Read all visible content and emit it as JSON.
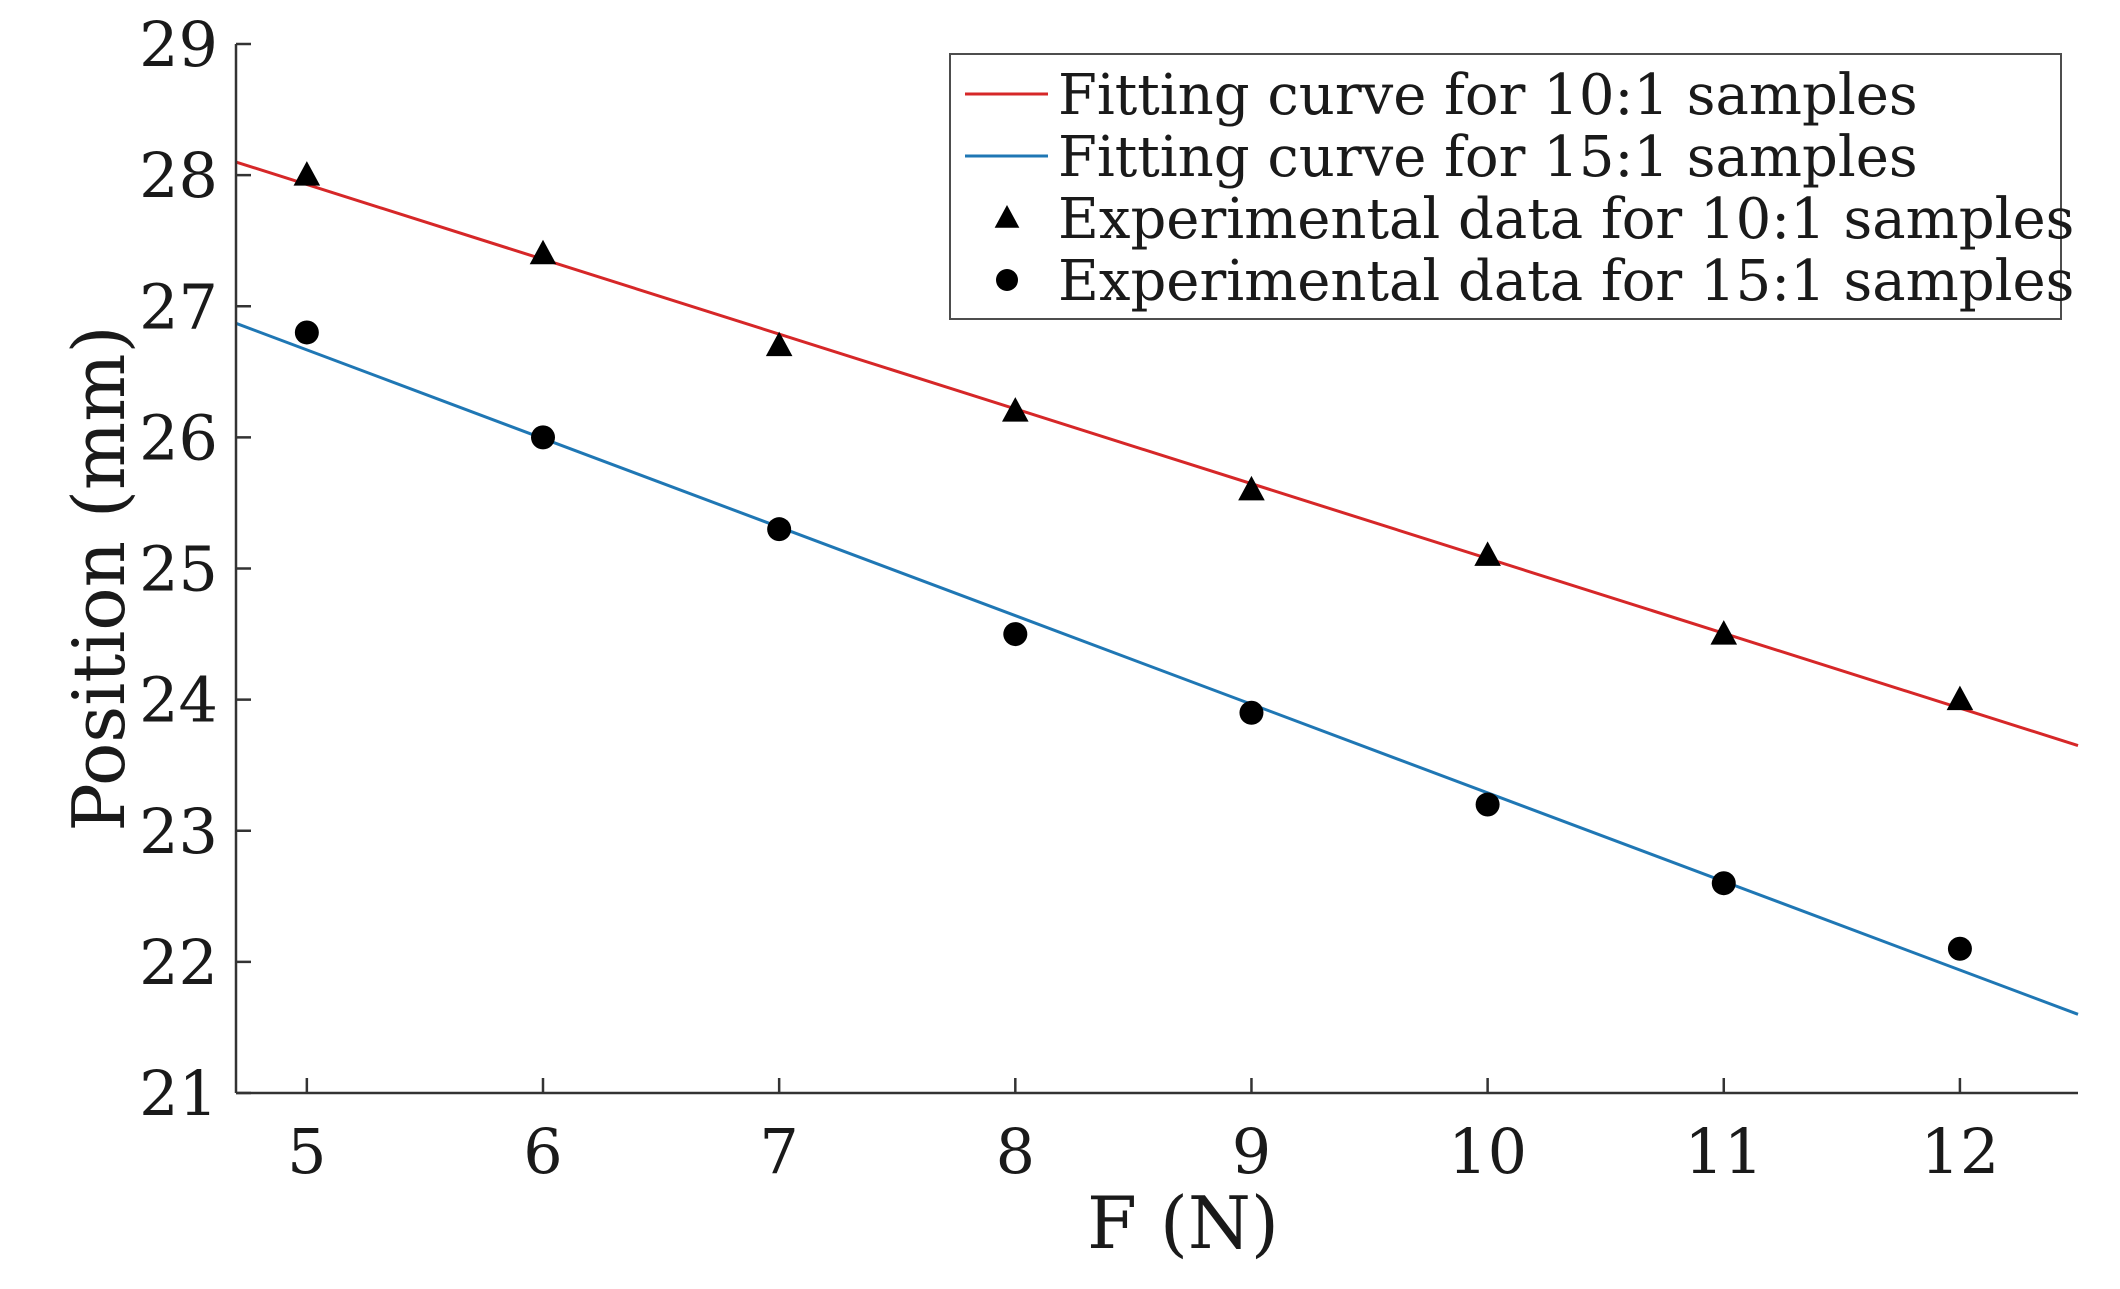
{
  "chart_data": {
    "type": "scatter",
    "title": "",
    "xlabel": "F (N)",
    "ylabel": "Position (mm)",
    "xlim": [
      4.7,
      12.5
    ],
    "ylim": [
      21,
      29
    ],
    "xticks": [
      5,
      6,
      7,
      8,
      9,
      10,
      11,
      12
    ],
    "yticks": [
      21,
      22,
      23,
      24,
      25,
      26,
      27,
      28,
      29
    ],
    "grid": false,
    "legend_position": "top-right",
    "series": [
      {
        "name": "Fitting curve for 10:1 samples",
        "kind": "line",
        "color": "#d62728",
        "x": [
          4.7,
          12.5
        ],
        "y": [
          28.1,
          23.65
        ]
      },
      {
        "name": "Fitting curve for 15:1 samples",
        "kind": "line",
        "color": "#1f77b4",
        "x": [
          4.7,
          12.5
        ],
        "y": [
          26.87,
          21.6
        ]
      },
      {
        "name": "Experimental data for 10:1 samples",
        "kind": "markers",
        "marker": "triangle",
        "color": "#000000",
        "x": [
          5,
          6,
          7,
          8,
          9,
          10,
          11,
          12
        ],
        "y": [
          28.0,
          27.4,
          26.7,
          26.2,
          25.6,
          25.1,
          24.5,
          24.0
        ]
      },
      {
        "name": "Experimental data for 15:1 samples",
        "kind": "markers",
        "marker": "circle",
        "color": "#000000",
        "x": [
          5,
          6,
          7,
          8,
          9,
          10,
          11,
          12
        ],
        "y": [
          26.8,
          26.0,
          25.3,
          24.5,
          23.9,
          23.2,
          22.6,
          22.1
        ]
      }
    ]
  }
}
